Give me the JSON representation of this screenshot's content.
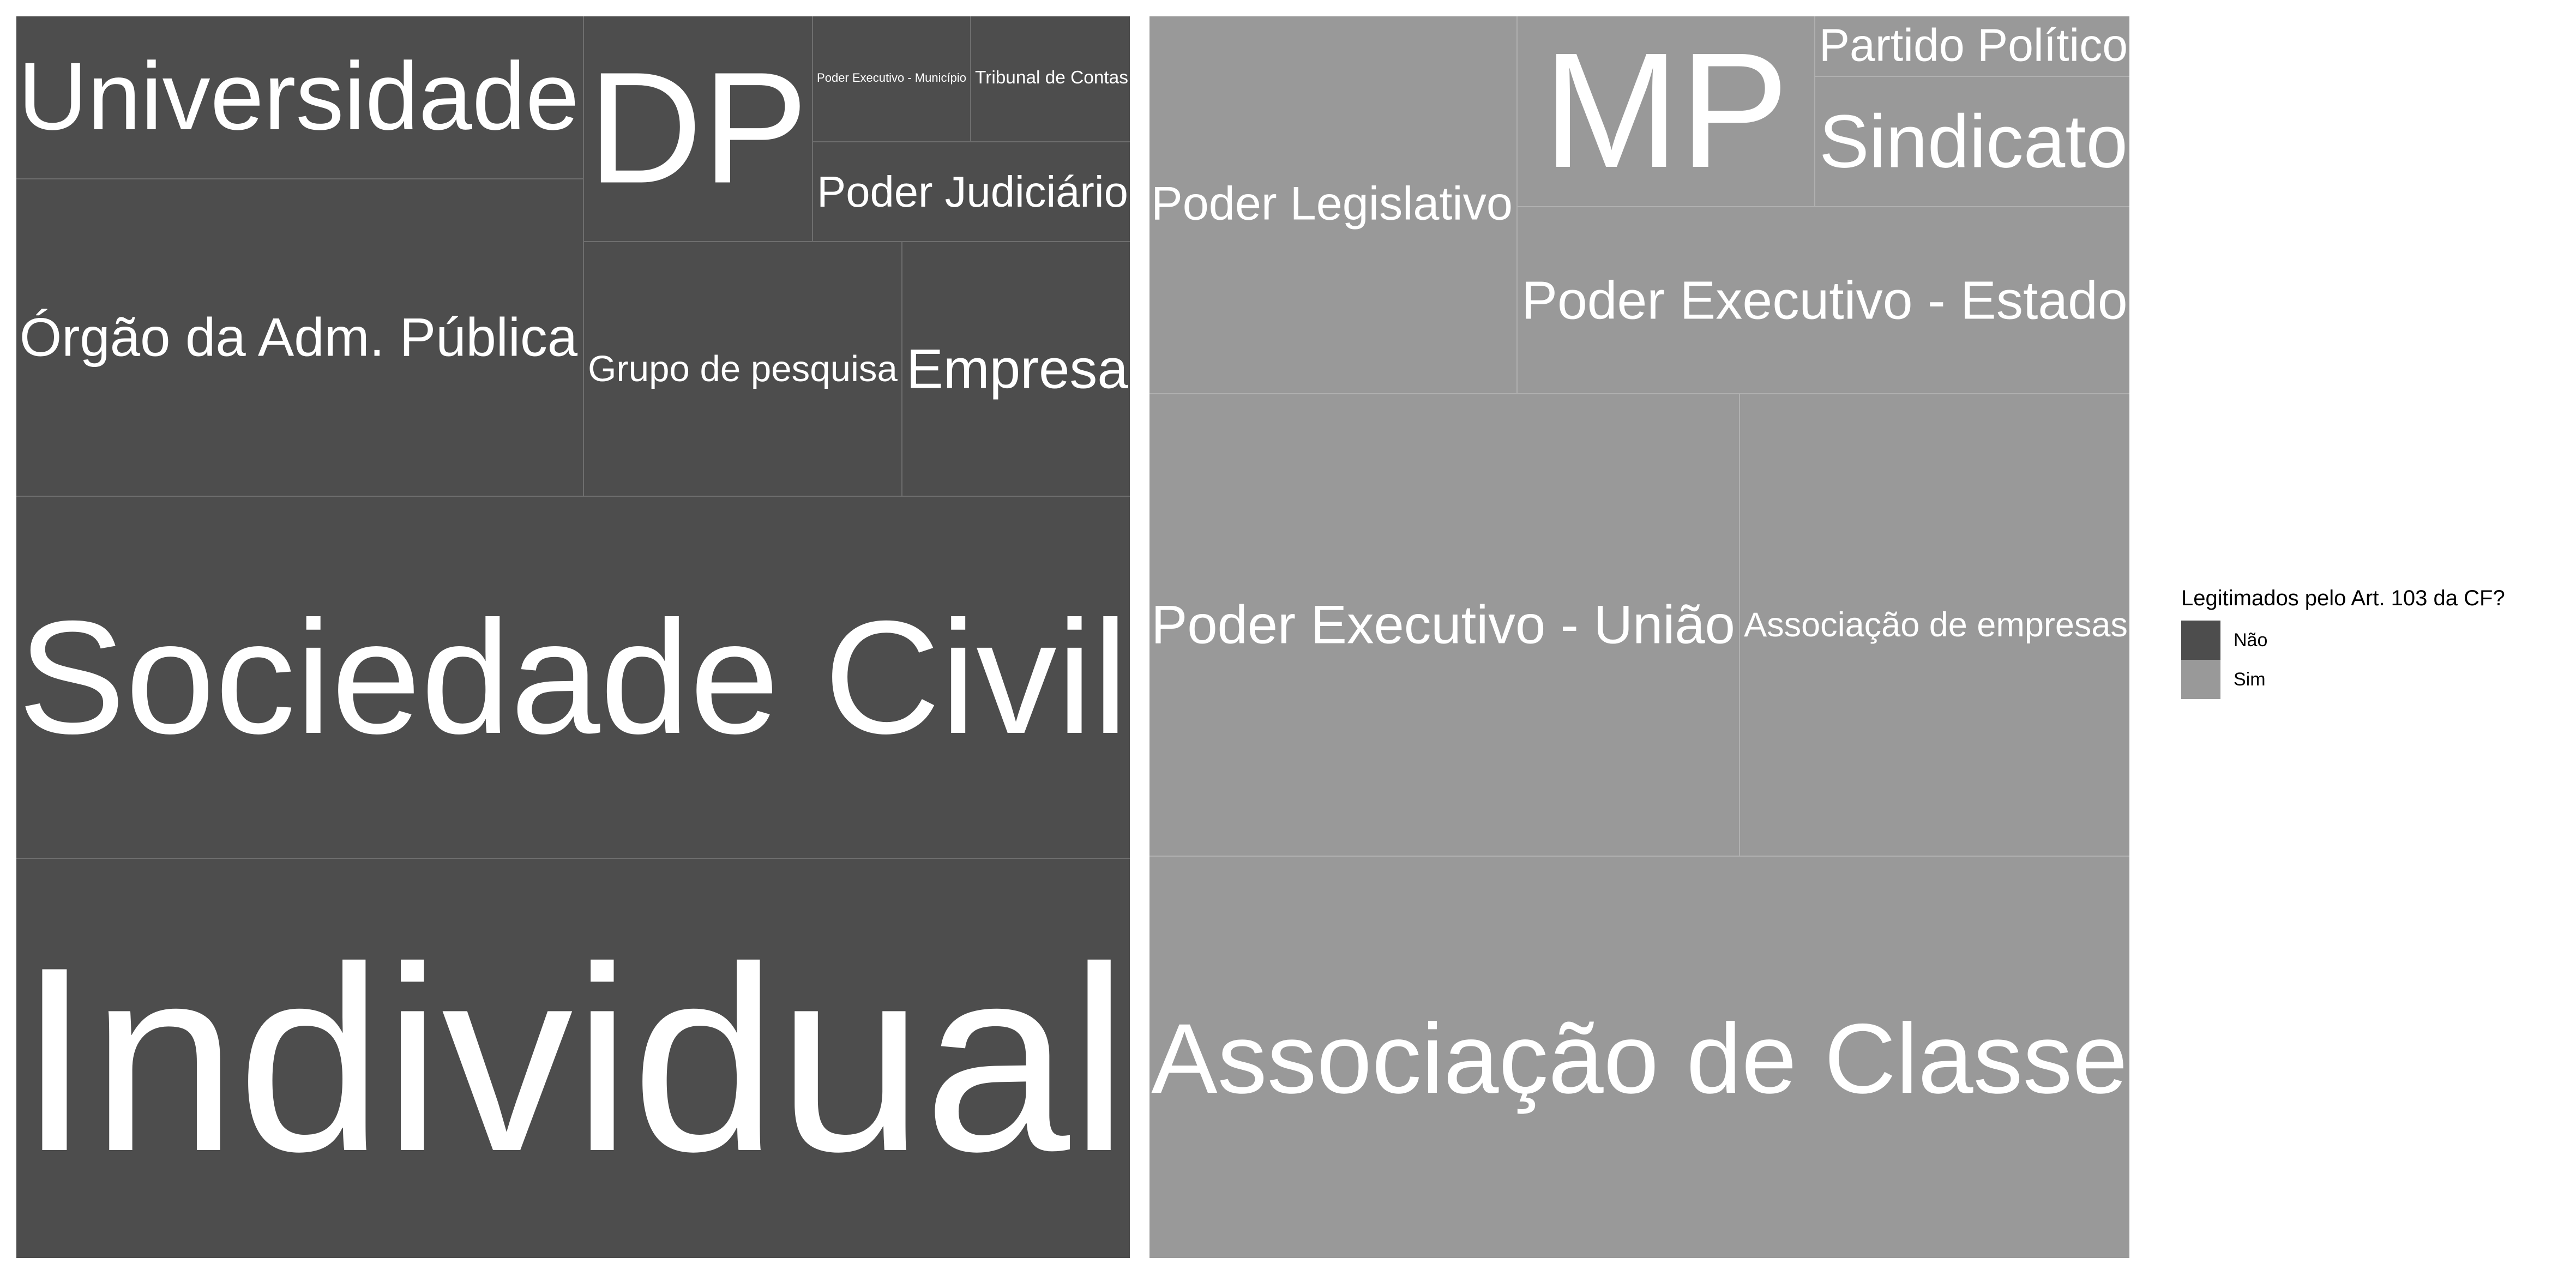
{
  "chart_data": {
    "type": "treemap",
    "legend": {
      "title": "Legitimados pelo Art. 103 da CF?",
      "position": "right",
      "entries": [
        {
          "label": "Não",
          "color": "#4d4d4d"
        },
        {
          "label": "Sim",
          "color": "#999999"
        }
      ]
    },
    "groups": [
      {
        "name": "Não",
        "color": "#4d4d4d",
        "tiles": [
          {
            "label": "Individual"
          },
          {
            "label": "Sociedade Civil"
          },
          {
            "label": "Universidade"
          },
          {
            "label": "Órgão da Adm. Pública"
          },
          {
            "label": "DP"
          },
          {
            "label": "Poder Executivo - Município"
          },
          {
            "label": "Tribunal de Contas"
          },
          {
            "label": "Poder Judiciário"
          },
          {
            "label": "Grupo de pesquisa"
          },
          {
            "label": "Empresa"
          }
        ]
      },
      {
        "name": "Sim",
        "color": "#999999",
        "tiles": [
          {
            "label": "Poder Legislativo"
          },
          {
            "label": "MP"
          },
          {
            "label": "Partido Político"
          },
          {
            "label": "Sindicato"
          },
          {
            "label": "Poder Executivo - Estado"
          },
          {
            "label": "Poder Executivo - União"
          },
          {
            "label": "Associação de empresas"
          },
          {
            "label": "Associação de Classe"
          }
        ]
      }
    ]
  }
}
